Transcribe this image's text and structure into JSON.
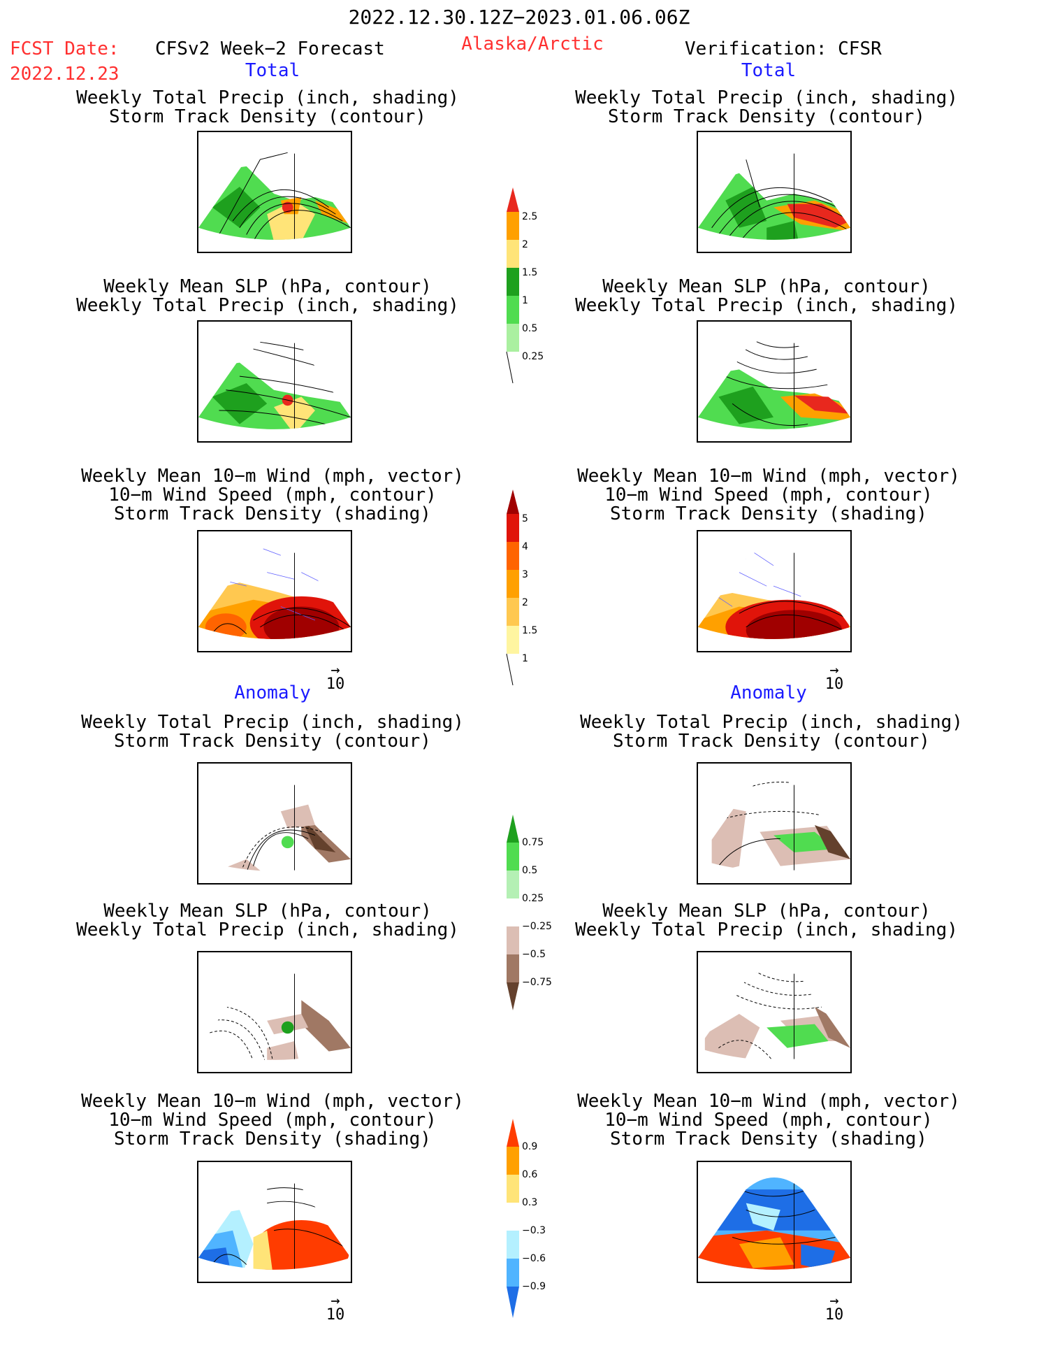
{
  "header": {
    "period": "2022.12.30.12Z−2023.01.06.06Z",
    "fcst_label": "FCST Date:",
    "fcst_date": "2022.12.23",
    "forecast_label": "CFSv2 Week−2 Forecast",
    "region": "Alaska/Arctic",
    "verification_label": "Verification: CFSR"
  },
  "sections": {
    "total": "Total",
    "anomaly": "Anomaly"
  },
  "panel_titles": {
    "precip_storm": [
      "Weekly Total Precip (inch, shading)",
      "Storm Track Density (contour)"
    ],
    "slp_precip": [
      "Weekly Mean SLP (hPa, contour)",
      "Weekly Total Precip (inch, shading)"
    ],
    "wind_storm": [
      "Weekly Mean 10−m Wind (mph, vector)",
      "10−m Wind Speed (mph, contour)",
      "Storm Track Density (shading)"
    ]
  },
  "vector_ref": "10",
  "colorbars": {
    "total_precip": {
      "labels": [
        "2.5",
        "2",
        "1.5",
        "1",
        "0.5",
        "0.25"
      ],
      "colors": [
        "#e8281e",
        "#ffa000",
        "#ffe478",
        "#1ea01e",
        "#50dc50",
        "#aaf0a0"
      ]
    },
    "total_storm": {
      "labels": [
        "5",
        "4",
        "3",
        "2",
        "1.5",
        "1"
      ],
      "colors": [
        "#a00000",
        "#e0140a",
        "#ff6400",
        "#ffa000",
        "#ffc850",
        "#fff5a0"
      ]
    },
    "anom_precip": {
      "labels": [
        "0.75",
        "0.5",
        "0.25",
        "−0.25",
        "−0.5",
        "−0.75"
      ],
      "colors": [
        "#1ea01e",
        "#50dc50",
        "#b4f0b4",
        "#ffffff",
        "#dcbeb4",
        "#a07864",
        "#64412d"
      ]
    },
    "anom_storm": {
      "labels": [
        "0.9",
        "0.6",
        "0.3",
        "−0.3",
        "−0.6",
        "−0.9"
      ],
      "colors": [
        "#ff3c00",
        "#ffa000",
        "#ffe478",
        "#ffffff",
        "#b4f0ff",
        "#50b4ff",
        "#1e6ee6"
      ]
    }
  }
}
